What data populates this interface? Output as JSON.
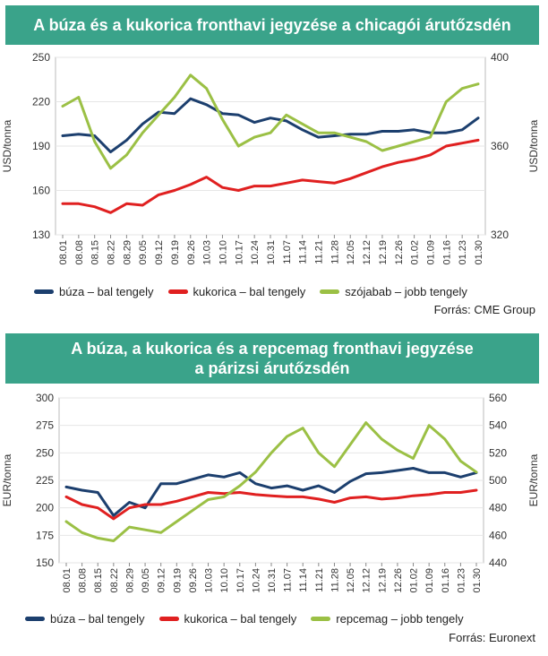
{
  "chart_data": [
    {
      "type": "line",
      "title": "A búza és a kukorica fronthavi jegyzése a chicagói árutőzsdén",
      "ylabel_left": "USD/tonna",
      "ylabel_right": "USD/tonna",
      "ylim_left": [
        130,
        250
      ],
      "ylim_right": [
        320,
        400
      ],
      "yticks_left": [
        "250",
        "220",
        "190",
        "160",
        "130"
      ],
      "yticks_right": [
        "400",
        "360",
        "320"
      ],
      "x_ticks": [
        "08.01",
        "08.08",
        "08.15",
        "08.22",
        "08.29",
        "09.05",
        "09.12",
        "09.19",
        "09.26",
        "10.03",
        "10.10",
        "10.17",
        "10.24",
        "10.31",
        "11.07",
        "11.14",
        "11.21",
        "11.28",
        "12.05",
        "12.12",
        "12.19",
        "12.26",
        "01.02",
        "01.09",
        "01.16",
        "01.23",
        "01.30"
      ],
      "series": [
        {
          "name": "búza – bal tengely",
          "axis": "left",
          "color": "#1c3f6e",
          "values": [
            197,
            198,
            197,
            186,
            194,
            205,
            213,
            212,
            222,
            218,
            212,
            211,
            206,
            209,
            207,
            201,
            196,
            197,
            198,
            198,
            200,
            200,
            201,
            199,
            199,
            201,
            209
          ]
        },
        {
          "name": "kukorica – bal tengely",
          "axis": "left",
          "color": "#e02020",
          "values": [
            151,
            151,
            149,
            145,
            151,
            150,
            157,
            160,
            164,
            169,
            162,
            160,
            163,
            163,
            165,
            167,
            166,
            165,
            168,
            172,
            176,
            179,
            181,
            184,
            190,
            192,
            194
          ]
        },
        {
          "name": "szójabab – jobb tengely",
          "axis": "right",
          "color": "#9bc045",
          "values": [
            378,
            382,
            362,
            350,
            356,
            366,
            374,
            382,
            392,
            386,
            372,
            360,
            364,
            366,
            374,
            370,
            366,
            366,
            364,
            362,
            358,
            360,
            362,
            364,
            380,
            386,
            388
          ]
        }
      ],
      "source": "Forrás: CME Group"
    },
    {
      "type": "line",
      "title": "A búza, a kukorica és a repcemag fronthavi jegyzése a párizsi árutőzsdén",
      "ylabel_left": "EUR/tonna",
      "ylabel_right": "EUR/tonna",
      "ylim_left": [
        150,
        300
      ],
      "ylim_right": [
        440,
        560
      ],
      "yticks_left": [
        "300",
        "275",
        "250",
        "225",
        "200",
        "175",
        "150"
      ],
      "yticks_right": [
        "560",
        "540",
        "520",
        "500",
        "480",
        "460",
        "440"
      ],
      "x_ticks": [
        "08.01",
        "08.08",
        "08.15",
        "08.22",
        "08.29",
        "09.05",
        "09.12",
        "09.19",
        "09.26",
        "10.03",
        "10.10",
        "10.17",
        "10.24",
        "10.31",
        "11.07",
        "11.14",
        "11.21",
        "11.28",
        "12.05",
        "12.12",
        "12.19",
        "12.26",
        "01.02",
        "01.09",
        "01.16",
        "01.23",
        "01.30"
      ],
      "series": [
        {
          "name": "búza – bal tengely",
          "axis": "left",
          "color": "#1c3f6e",
          "values": [
            219,
            216,
            214,
            193,
            205,
            200,
            222,
            222,
            226,
            230,
            228,
            232,
            222,
            218,
            220,
            216,
            220,
            214,
            224,
            231,
            232,
            234,
            236,
            232,
            232,
            228,
            232
          ]
        },
        {
          "name": "kukorica – bal tengely",
          "axis": "left",
          "color": "#e02020",
          "values": [
            210,
            203,
            200,
            190,
            200,
            203,
            203,
            206,
            210,
            214,
            213,
            214,
            212,
            211,
            210,
            210,
            208,
            205,
            209,
            210,
            208,
            209,
            211,
            212,
            214,
            214,
            216
          ]
        },
        {
          "name": "repcemag – jobb tengely",
          "axis": "right",
          "color": "#9bc045",
          "values": [
            470,
            462,
            458,
            456,
            466,
            464,
            462,
            470,
            478,
            486,
            488,
            496,
            506,
            520,
            532,
            538,
            520,
            510,
            526,
            542,
            530,
            522,
            516,
            540,
            530,
            514,
            506
          ]
        }
      ],
      "source": "Forrás: Euronext"
    }
  ],
  "legends": [
    [
      "búza – bal tengely",
      "kukorica – bal tengely",
      "szójabab – jobb tengely"
    ],
    [
      "búza – bal tengely",
      "kukorica – bal tengely",
      "repcemag – jobb tengely"
    ]
  ],
  "titles": {
    "chart1": "A búza és a kukorica fronthavi jegyzése a chicagói árutőzsdén",
    "chart2_line1": "A búza, a kukorica és a repcemag fronthavi jegyzése",
    "chart2_line2": "a párizsi árutőzsdén"
  },
  "sources": [
    "Forrás: CME Group",
    "Forrás: Euronext"
  ]
}
